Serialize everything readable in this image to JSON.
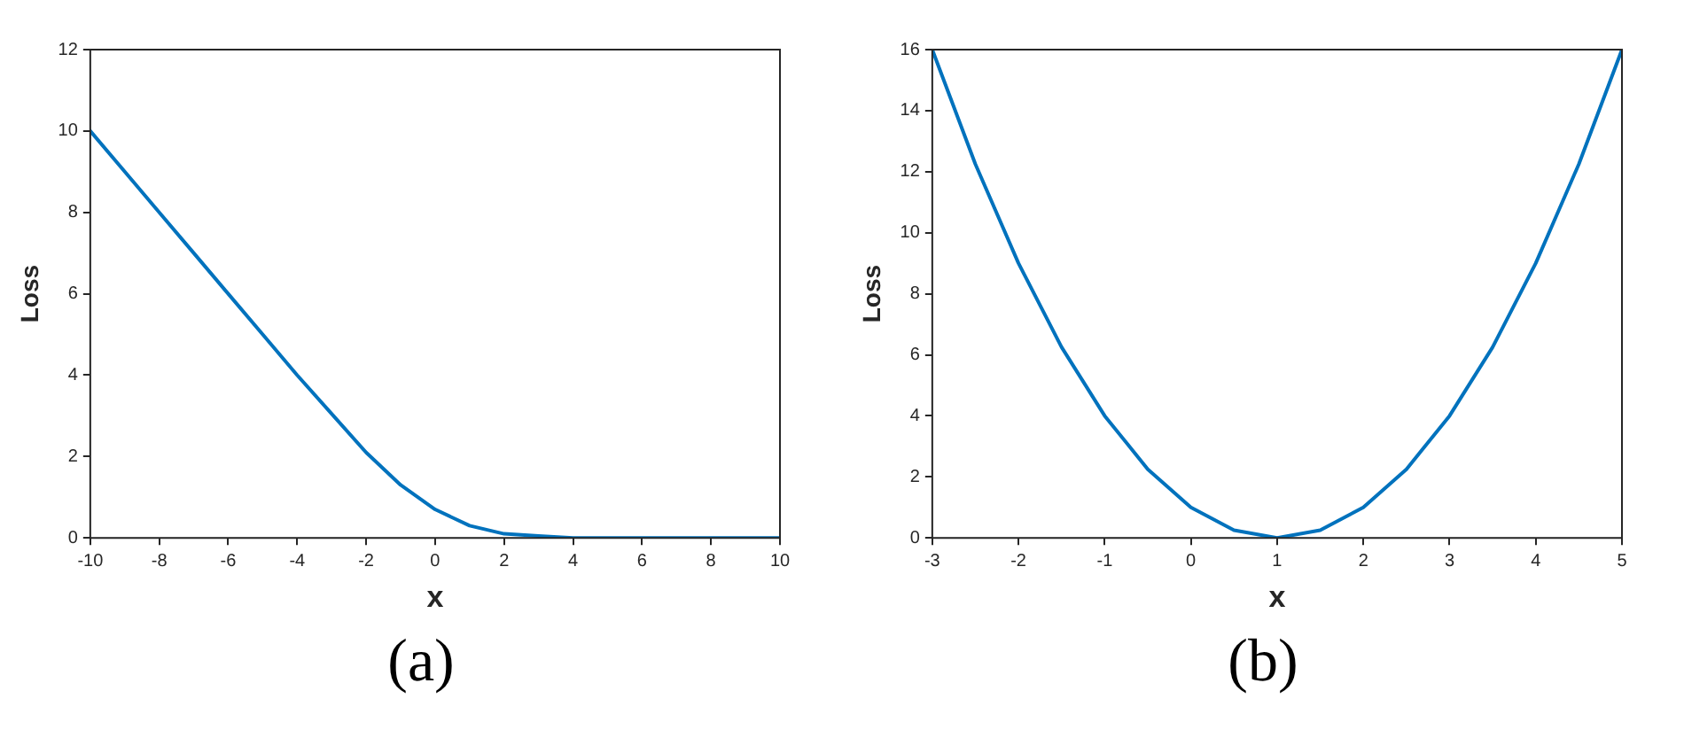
{
  "chart_data": [
    {
      "type": "line",
      "xlabel": "x",
      "ylabel": "Loss",
      "annotations": [
        "(a)"
      ],
      "color": "#0072bd",
      "grid": false,
      "marker": "none",
      "line_style": "solid",
      "x": [
        -10,
        -9,
        -8,
        -7,
        -6,
        -5,
        -4,
        -3,
        -2,
        -1,
        0,
        1,
        2,
        3,
        4,
        5,
        6,
        7,
        8,
        9,
        10
      ],
      "values": [
        10,
        9,
        8,
        7,
        6,
        5,
        4,
        3.05,
        2.1,
        1.3,
        0.7,
        0.3,
        0.1,
        0.05,
        0,
        0,
        0,
        0,
        0,
        0,
        0
      ],
      "xlim": [
        -10,
        10
      ],
      "xticks": [
        -10,
        -8,
        -6,
        -4,
        -2,
        0,
        2,
        4,
        6,
        8,
        10
      ],
      "ylim": [
        0,
        12
      ],
      "yticks": [
        0,
        2,
        4,
        6,
        8,
        10,
        12
      ]
    },
    {
      "type": "line",
      "xlabel": "x",
      "ylabel": "Loss",
      "annotations": [
        "(b)"
      ],
      "color": "#0072bd",
      "grid": false,
      "marker": "none",
      "line_style": "solid",
      "x": [
        -3,
        -2.5,
        -2,
        -1.5,
        -1,
        -0.5,
        0,
        0.5,
        1,
        1.5,
        2,
        2.5,
        3,
        3.5,
        4,
        4.5,
        5
      ],
      "values": [
        16,
        12.25,
        9,
        6.25,
        4,
        2.25,
        1,
        0.25,
        0,
        0.25,
        1,
        2.25,
        4,
        6.25,
        9,
        12.25,
        16
      ],
      "xlim": [
        -3,
        5
      ],
      "xticks": [
        -3,
        -2,
        -1,
        0,
        1,
        2,
        3,
        4,
        5
      ],
      "ylim": [
        0,
        16
      ],
      "yticks": [
        0,
        2,
        4,
        6,
        8,
        10,
        12,
        14,
        16
      ]
    }
  ]
}
